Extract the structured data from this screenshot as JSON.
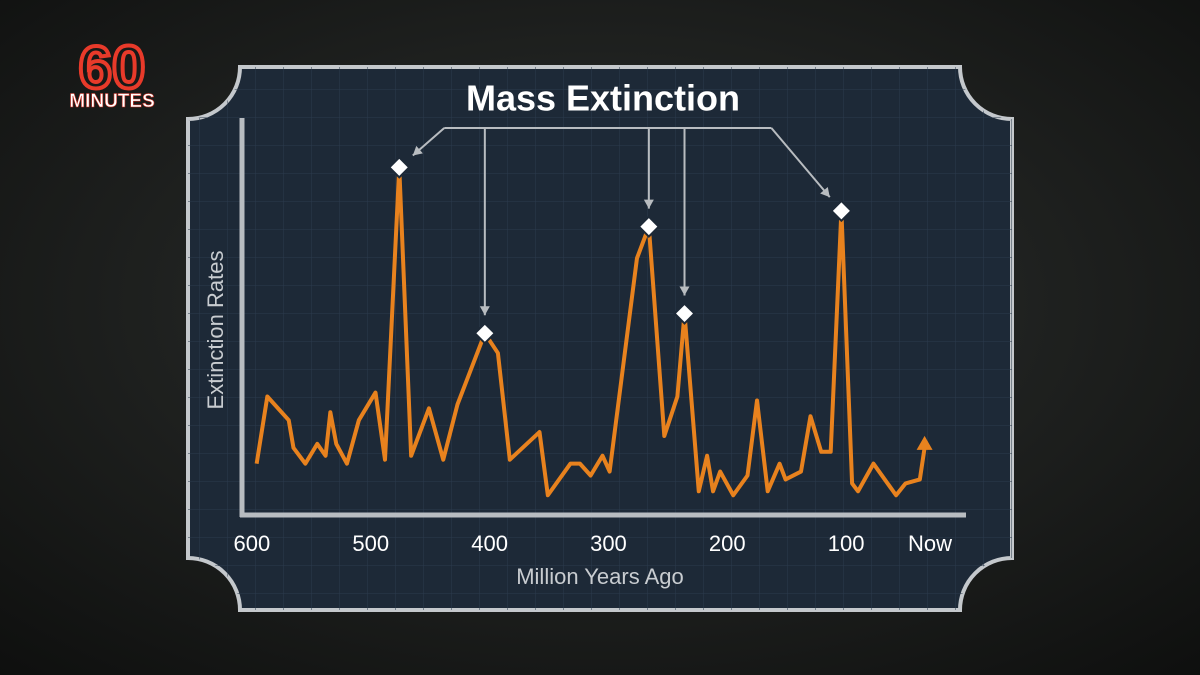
{
  "logo": {
    "number": "60",
    "word": "MINUTES"
  },
  "chart_data": {
    "type": "line",
    "title": "Mass Extinction",
    "xlabel": "Million Years Ago",
    "ylabel": "Extinction Rates",
    "x": [
      596,
      587,
      569,
      565,
      555,
      545,
      538,
      534,
      529,
      520,
      510,
      496,
      488,
      476,
      466,
      451,
      439,
      427,
      404,
      393,
      383,
      358,
      351,
      332,
      324,
      315,
      305,
      299,
      276,
      266,
      253,
      242,
      236,
      224,
      217,
      212,
      206,
      195,
      183,
      175,
      166,
      156,
      151,
      138,
      130,
      121,
      113,
      104,
      95,
      90,
      77,
      58,
      50,
      38,
      34
    ],
    "series": [
      {
        "name": "Extinction Rates",
        "color": "#e8821e",
        "values": [
          13,
          30,
          24,
          17,
          13,
          18,
          15,
          26,
          18,
          13,
          24,
          31,
          14,
          88,
          15,
          27,
          14,
          28,
          46,
          41,
          14,
          21,
          5,
          13,
          13,
          10,
          15,
          11,
          65,
          73,
          20,
          30,
          51,
          6,
          15,
          6,
          11,
          5,
          10,
          29,
          6,
          13,
          9,
          11,
          25,
          16,
          16,
          77,
          8,
          6,
          13,
          5,
          8,
          9,
          17
        ]
      }
    ],
    "annotation": {
      "text": "Mass Extinction",
      "x": [
        476,
        404,
        266,
        236,
        104
      ]
    },
    "xlim": [
      610,
      0
    ],
    "ylim": [
      0,
      100
    ],
    "xticks": [
      600,
      500,
      400,
      300,
      200,
      100,
      {
        "value": 0,
        "label": "Now"
      }
    ]
  }
}
